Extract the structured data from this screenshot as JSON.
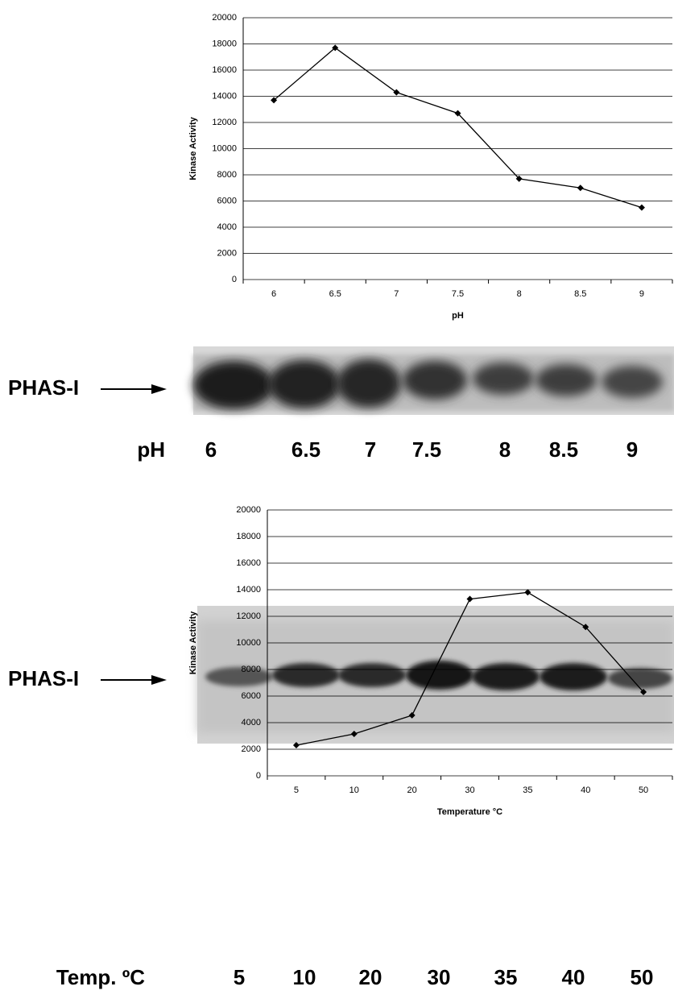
{
  "chart_data": [
    {
      "type": "line",
      "ylabel": "Kinase Activity",
      "xlabel": "pH",
      "categories": [
        "6",
        "6.5",
        "7",
        "7.5",
        "8",
        "8.5",
        "9"
      ],
      "series": [
        {
          "color": "#000000",
          "values": [
            13700,
            17700,
            14300,
            12700,
            7700,
            7000,
            5500
          ]
        }
      ],
      "ylim": [
        0,
        20000
      ],
      "yticks": [
        0,
        2000,
        4000,
        6000,
        8000,
        10000,
        12000,
        14000,
        16000,
        18000,
        20000
      ],
      "grid": true
    },
    {
      "type": "line",
      "ylabel": "Kinase Activity",
      "xlabel": "Temperature °C",
      "categories": [
        "5",
        "10",
        "20",
        "30",
        "35",
        "40",
        "50"
      ],
      "series": [
        {
          "color": "#000000",
          "values": [
            2300,
            3150,
            4550,
            13300,
            13800,
            11200,
            6300
          ]
        }
      ],
      "ylim": [
        0,
        20000
      ],
      "yticks": [
        0,
        2000,
        4000,
        6000,
        8000,
        10000,
        12000,
        14000,
        16000,
        18000,
        20000
      ],
      "grid": true
    }
  ],
  "gels": [
    {
      "label": "PHAS-I",
      "lane_title": "pH",
      "lanes": [
        "6",
        "6.5",
        "7",
        "7.5",
        "8",
        "8.5",
        "9"
      ]
    },
    {
      "label": "PHAS-I",
      "lane_title": "Temp. ºC",
      "lanes": [
        "5",
        "10",
        "20",
        "30",
        "35",
        "40",
        "50"
      ]
    }
  ]
}
